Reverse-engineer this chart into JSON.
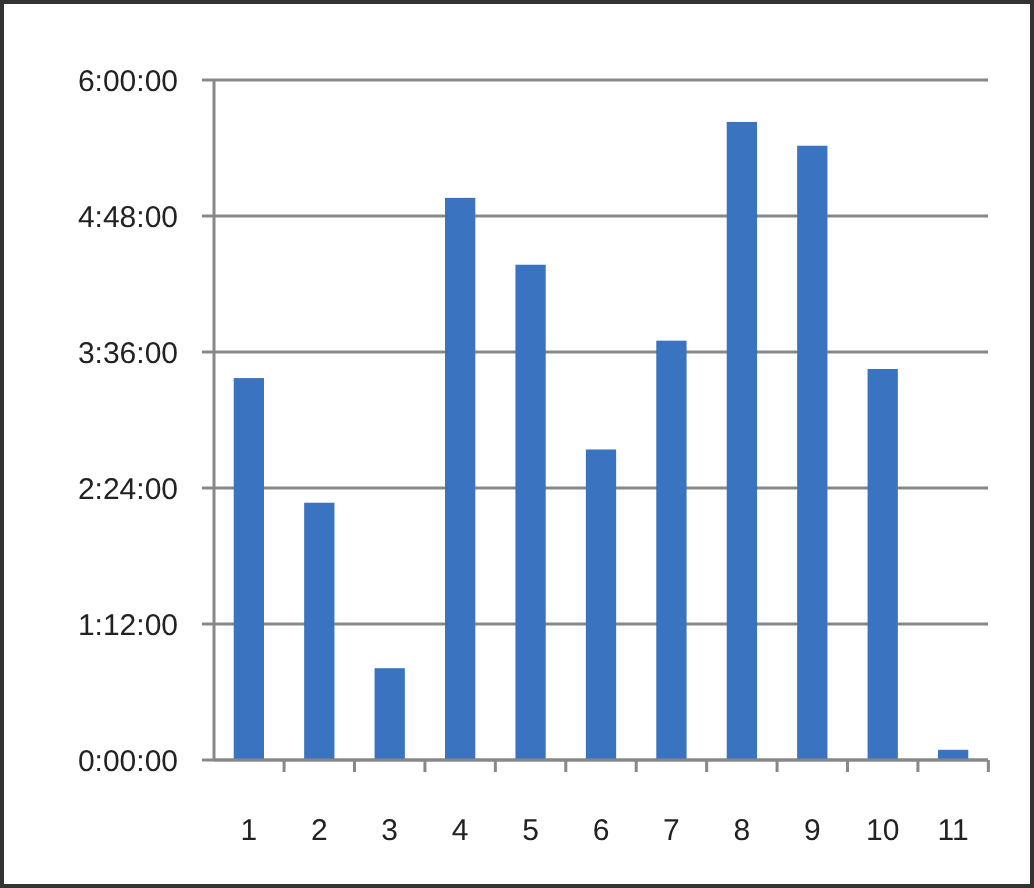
{
  "chart_data": {
    "type": "bar",
    "categories": [
      "1",
      "2",
      "3",
      "4",
      "5",
      "6",
      "7",
      "8",
      "9",
      "10",
      "11"
    ],
    "values": [
      3.37,
      2.27,
      0.81,
      4.96,
      4.37,
      2.74,
      3.7,
      5.63,
      5.42,
      3.45,
      0.09
    ],
    "color": "#3a74c0",
    "ylim": [
      0,
      6
    ],
    "yticks": [
      {
        "value": 0,
        "label": "0:00:00"
      },
      {
        "value": 1.2,
        "label": "1:12:00"
      },
      {
        "value": 2.4,
        "label": "2:24:00"
      },
      {
        "value": 3.6,
        "label": "3:36:00"
      },
      {
        "value": 4.8,
        "label": "4:48:00"
      },
      {
        "value": 6,
        "label": "6:00:00"
      }
    ],
    "grid": "y"
  }
}
